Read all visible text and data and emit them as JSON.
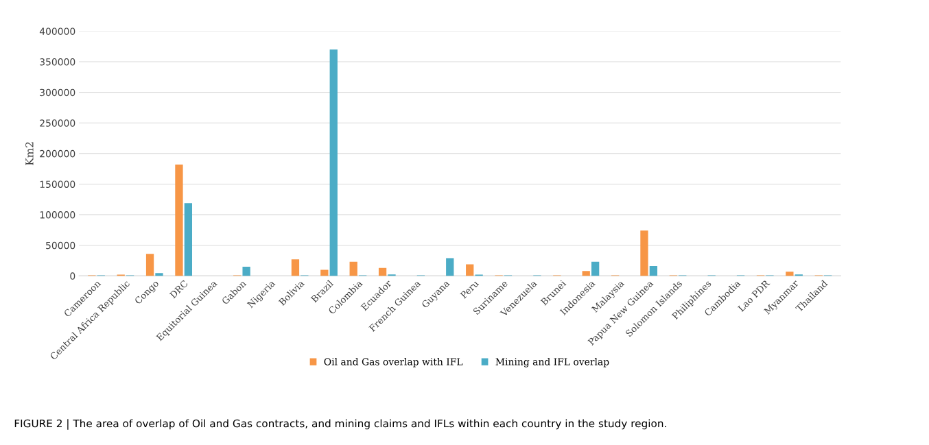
{
  "chart_data": {
    "type": "bar",
    "categories": [
      "Cameroon",
      "Central Africa Republic",
      "Congo",
      "DRC",
      "Equitorial Guinea",
      "Gabon",
      "Nigeria",
      "Bolivia",
      "Brazil",
      "Colombia",
      "Ecuador",
      "French Guinea",
      "Guyana",
      "Peru",
      "Suriname",
      "Venezuela",
      "Brunei",
      "Indonesia",
      "Malaysia",
      "Papua New Guinea",
      "Solomon Islands",
      "Philiphines",
      "Cambodia",
      "Lao PDR",
      "Myanmar",
      "Thailand"
    ],
    "series": [
      {
        "name": "Oil and Gas overlap with IFL",
        "color": "#f79646",
        "values": [
          1000,
          2000,
          36000,
          182000,
          0,
          1000,
          0,
          27000,
          10000,
          23000,
          13000,
          0,
          0,
          19000,
          1000,
          0,
          1000,
          8000,
          1000,
          74000,
          1000,
          0,
          0,
          1000,
          7000,
          1000
        ]
      },
      {
        "name": "Mining and IFL overlap",
        "color": "#4bacc6",
        "values": [
          1000,
          1000,
          4500,
          119000,
          0,
          15000,
          0,
          1000,
          370000,
          1000,
          2500,
          1000,
          29000,
          2000,
          1000,
          1000,
          0,
          23000,
          0,
          16000,
          1000,
          1000,
          1000,
          1000,
          2500,
          1000
        ]
      }
    ],
    "ylabel": "Km2",
    "ylim": [
      0,
      400000
    ],
    "yticks": [
      0,
      50000,
      100000,
      150000,
      200000,
      250000,
      300000,
      350000,
      400000
    ],
    "grid": "y",
    "legend": "bottom",
    "annotations": [
      "FIGURE 2 | The area of overlap of Oil and Gas contracts, and mining claims and IFLs within each country in the study region."
    ]
  }
}
